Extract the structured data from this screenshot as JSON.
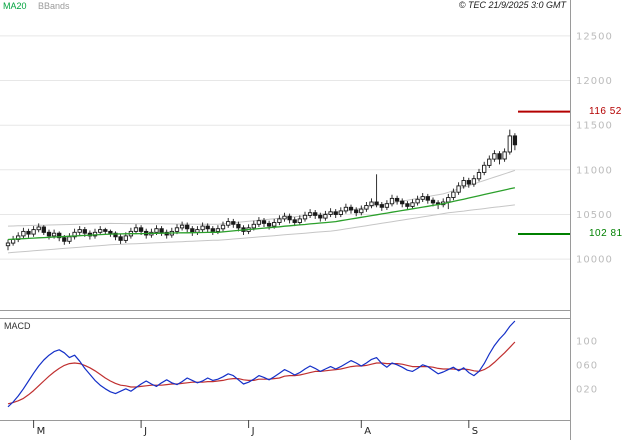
{
  "header": {
    "ma20_label": "MA20",
    "bbands_label": "BBands",
    "copyright": "© TEC 21/9/2025 3:0 GMT"
  },
  "price_panel": {
    "axis_labels": [
      {
        "text": "12500",
        "value": 12500
      },
      {
        "text": "12000",
        "value": 12000
      },
      {
        "text": "11500",
        "value": 11500
      },
      {
        "text": "11000",
        "value": 11000
      },
      {
        "text": "10500",
        "value": 10500
      },
      {
        "text": "10000",
        "value": 10000
      }
    ],
    "levels": [
      {
        "name": "resistance",
        "text": "116 52",
        "value": 11652,
        "color": "#b40000"
      },
      {
        "name": "support",
        "text": "102 81",
        "value": 10281,
        "color": "#008000"
      }
    ]
  },
  "macd_panel": {
    "label": "MACD",
    "axis_labels": [
      {
        "text": "100",
        "value": 1.0
      },
      {
        "text": "060",
        "value": 0.6
      },
      {
        "text": "020",
        "value": 0.2
      }
    ]
  },
  "x_axis": {
    "months": [
      {
        "label": "M",
        "index": 5
      },
      {
        "label": "J",
        "index": 26
      },
      {
        "label": "J",
        "index": 47
      },
      {
        "label": "A",
        "index": 69
      },
      {
        "label": "S",
        "index": 90
      }
    ]
  },
  "colors": {
    "ma20": "#2ca02c",
    "bbands": "#c6c6c6",
    "candle": "#1a1a1a",
    "up_candle": "#ffffff",
    "macd_line": "#1430c8",
    "signal_line": "#c03030",
    "grid": "#e7e7e7",
    "axis_text": "#bcbcbc",
    "border": "#9a9a9a"
  },
  "chart_data": {
    "type": "candlestick",
    "title": "",
    "description": "Daily price candles with MA20 and Bollinger Bands (upper panel) and MACD with signal line (lower panel), May to September 2025",
    "categories_note": "100 daily sessions: May(21) June(21) July(23) August(21) September(14)",
    "price_ylim": [
      9430,
      12700
    ],
    "macd_ylim": [
      -0.32,
      1.38
    ],
    "legend": [
      "MA20",
      "BBands"
    ],
    "candles": [
      [
        10150,
        10220,
        10100,
        10180
      ],
      [
        10180,
        10260,
        10150,
        10220
      ],
      [
        10220,
        10300,
        10190,
        10260
      ],
      [
        10260,
        10350,
        10230,
        10310
      ],
      [
        10310,
        10340,
        10240,
        10280
      ],
      [
        10280,
        10370,
        10250,
        10330
      ],
      [
        10330,
        10400,
        10300,
        10360
      ],
      [
        10360,
        10380,
        10270,
        10300
      ],
      [
        10300,
        10330,
        10220,
        10260
      ],
      [
        10260,
        10330,
        10230,
        10290
      ],
      [
        10290,
        10310,
        10200,
        10240
      ],
      [
        10240,
        10270,
        10160,
        10200
      ],
      [
        10200,
        10290,
        10170,
        10250
      ],
      [
        10250,
        10340,
        10220,
        10300
      ],
      [
        10300,
        10370,
        10270,
        10330
      ],
      [
        10330,
        10360,
        10250,
        10290
      ],
      [
        10290,
        10320,
        10220,
        10260
      ],
      [
        10260,
        10340,
        10230,
        10300
      ],
      [
        10300,
        10370,
        10270,
        10330
      ],
      [
        10330,
        10350,
        10270,
        10310
      ],
      [
        10310,
        10330,
        10250,
        10290
      ],
      [
        10290,
        10310,
        10210,
        10250
      ],
      [
        10250,
        10280,
        10170,
        10210
      ],
      [
        10210,
        10300,
        10180,
        10260
      ],
      [
        10260,
        10350,
        10230,
        10310
      ],
      [
        10310,
        10390,
        10280,
        10350
      ],
      [
        10350,
        10380,
        10270,
        10310
      ],
      [
        10310,
        10340,
        10230,
        10270
      ],
      [
        10270,
        10340,
        10240,
        10300
      ],
      [
        10300,
        10380,
        10270,
        10340
      ],
      [
        10340,
        10370,
        10260,
        10300
      ],
      [
        10300,
        10330,
        10230,
        10270
      ],
      [
        10270,
        10350,
        10240,
        10310
      ],
      [
        10310,
        10390,
        10280,
        10350
      ],
      [
        10350,
        10420,
        10320,
        10380
      ],
      [
        10380,
        10410,
        10300,
        10340
      ],
      [
        10340,
        10370,
        10260,
        10300
      ],
      [
        10300,
        10370,
        10270,
        10330
      ],
      [
        10330,
        10410,
        10300,
        10370
      ],
      [
        10370,
        10400,
        10300,
        10340
      ],
      [
        10340,
        10370,
        10270,
        10310
      ],
      [
        10310,
        10380,
        10280,
        10340
      ],
      [
        10340,
        10420,
        10310,
        10380
      ],
      [
        10380,
        10460,
        10350,
        10420
      ],
      [
        10420,
        10450,
        10350,
        10390
      ],
      [
        10390,
        10420,
        10310,
        10350
      ],
      [
        10350,
        10380,
        10270,
        10310
      ],
      [
        10310,
        10390,
        10280,
        10350
      ],
      [
        10350,
        10430,
        10320,
        10390
      ],
      [
        10390,
        10470,
        10360,
        10430
      ],
      [
        10430,
        10460,
        10360,
        10400
      ],
      [
        10400,
        10430,
        10330,
        10370
      ],
      [
        10370,
        10450,
        10340,
        10410
      ],
      [
        10410,
        10490,
        10380,
        10450
      ],
      [
        10450,
        10520,
        10420,
        10480
      ],
      [
        10480,
        10510,
        10400,
        10440
      ],
      [
        10440,
        10470,
        10370,
        10410
      ],
      [
        10410,
        10490,
        10380,
        10450
      ],
      [
        10450,
        10530,
        10420,
        10490
      ],
      [
        10490,
        10560,
        10460,
        10520
      ],
      [
        10520,
        10550,
        10450,
        10490
      ],
      [
        10490,
        10520,
        10420,
        10460
      ],
      [
        10460,
        10540,
        10430,
        10500
      ],
      [
        10500,
        10570,
        10470,
        10530
      ],
      [
        10530,
        10560,
        10460,
        10500
      ],
      [
        10500,
        10580,
        10470,
        10540
      ],
      [
        10540,
        10620,
        10510,
        10580
      ],
      [
        10580,
        10610,
        10510,
        10550
      ],
      [
        10550,
        10580,
        10480,
        10520
      ],
      [
        10520,
        10600,
        10490,
        10560
      ],
      [
        10560,
        10640,
        10530,
        10600
      ],
      [
        10600,
        10680,
        10570,
        10640
      ],
      [
        10640,
        10950,
        10580,
        10610
      ],
      [
        10610,
        10640,
        10540,
        10580
      ],
      [
        10580,
        10660,
        10550,
        10620
      ],
      [
        10620,
        10720,
        10590,
        10680
      ],
      [
        10680,
        10710,
        10610,
        10650
      ],
      [
        10650,
        10680,
        10580,
        10620
      ],
      [
        10620,
        10650,
        10550,
        10590
      ],
      [
        10590,
        10670,
        10560,
        10630
      ],
      [
        10630,
        10710,
        10600,
        10670
      ],
      [
        10670,
        10740,
        10640,
        10700
      ],
      [
        10700,
        10730,
        10620,
        10660
      ],
      [
        10660,
        10690,
        10590,
        10630
      ],
      [
        10630,
        10660,
        10560,
        10610
      ],
      [
        10610,
        10680,
        10580,
        10640
      ],
      [
        10640,
        10730,
        10560,
        10690
      ],
      [
        10690,
        10790,
        10660,
        10750
      ],
      [
        10750,
        10860,
        10720,
        10820
      ],
      [
        10820,
        10920,
        10790,
        10880
      ],
      [
        10880,
        10910,
        10800,
        10840
      ],
      [
        10840,
        10940,
        10810,
        10900
      ],
      [
        10900,
        11010,
        10870,
        10970
      ],
      [
        10970,
        11090,
        10940,
        11050
      ],
      [
        11050,
        11160,
        11020,
        11120
      ],
      [
        11120,
        11220,
        11090,
        11180
      ],
      [
        11180,
        11210,
        11060,
        11120
      ],
      [
        11120,
        11240,
        11090,
        11200
      ],
      [
        11200,
        11450,
        11170,
        11380
      ],
      [
        11380,
        11410,
        11220,
        11280
      ]
    ],
    "ma20": [
      10220,
      10223,
      10226,
      10229,
      10232,
      10235,
      10238,
      10241,
      10244,
      10247,
      10250,
      10253,
      10256,
      10259,
      10262,
      10265,
      10268,
      10271,
      10274,
      10277,
      10280,
      10281,
      10282,
      10283,
      10284,
      10285,
      10286,
      10287,
      10288,
      10289,
      10290,
      10291,
      10292,
      10293,
      10294,
      10295,
      10296,
      10297,
      10298,
      10299,
      10300,
      10300,
      10305,
      10310,
      10316,
      10321,
      10326,
      10331,
      10336,
      10342,
      10347,
      10352,
      10357,
      10362,
      10368,
      10373,
      10378,
      10383,
      10388,
      10394,
      10399,
      10404,
      10409,
      10414,
      10420,
      10430,
      10439,
      10449,
      10458,
      10468,
      10477,
      10487,
      10496,
      10506,
      10515,
      10525,
      10534,
      10544,
      10553,
      10563,
      10572,
      10582,
      10591,
      10601,
      10610,
      10620,
      10633,
      10646,
      10659,
      10671,
      10684,
      10697,
      10710,
      10723,
      10736,
      10749,
      10761,
      10774,
      10787,
      10800
    ],
    "bb_upper": [
      10370,
      10371,
      10373,
      10374,
      10376,
      10377,
      10379,
      10380,
      10382,
      10383,
      10385,
      10386,
      10388,
      10389,
      10391,
      10392,
      10394,
      10395,
      10397,
      10398,
      10400,
      10399,
      10399,
      10398,
      10398,
      10397,
      10397,
      10396,
      10396,
      10395,
      10395,
      10394,
      10394,
      10393,
      10393,
      10392,
      10392,
      10391,
      10391,
      10390,
      10390,
      10390,
      10395,
      10400,
      10407,
      10412,
      10418,
      10423,
      10429,
      10435,
      10441,
      10446,
      10452,
      10457,
      10464,
      10469,
      10475,
      10480,
      10486,
      10492,
      10498,
      10503,
      10509,
      10514,
      10520,
      10531,
      10540,
      10551,
      10560,
      10571,
      10580,
      10591,
      10600,
      10611,
      10620,
      10631,
      10640,
      10651,
      10660,
      10671,
      10680,
      10691,
      10700,
      10711,
      10720,
      10730,
      10748,
      10767,
      10786,
      10804,
      10823,
      10842,
      10861,
      10880,
      10899,
      10918,
      10936,
      10955,
      10974,
      10993
    ],
    "bb_lower": [
      10070,
      10075,
      10079,
      10084,
      10088,
      10093,
      10097,
      10102,
      10106,
      10111,
      10115,
      10120,
      10124,
      10129,
      10133,
      10138,
      10142,
      10147,
      10151,
      10156,
      10160,
      10163,
      10165,
      10168,
      10170,
      10173,
      10175,
      10178,
      10180,
      10183,
      10185,
      10188,
      10190,
      10193,
      10195,
      10198,
      10200,
      10203,
      10205,
      10208,
      10210,
      10210,
      10215,
      10220,
      10225,
      10230,
      10234,
      10239,
      10243,
      10249,
      10253,
      10258,
      10262,
      10267,
      10272,
      10277,
      10281,
      10286,
      10290,
      10296,
      10300,
      10305,
      10309,
      10314,
      10320,
      10329,
      10338,
      10347,
      10356,
      10365,
      10374,
      10383,
      10392,
      10401,
      10410,
      10419,
      10428,
      10437,
      10446,
      10455,
      10464,
      10473,
      10482,
      10491,
      10500,
      10510,
      10518,
      10525,
      10532,
      10538,
      10545,
      10552,
      10559,
      10566,
      10573,
      10580,
      10586,
      10593,
      10600,
      10607
    ],
    "macd": [
      -0.1,
      -0.02,
      0.08,
      0.2,
      0.33,
      0.46,
      0.58,
      0.68,
      0.76,
      0.82,
      0.85,
      0.8,
      0.72,
      0.76,
      0.66,
      0.54,
      0.44,
      0.34,
      0.26,
      0.2,
      0.15,
      0.12,
      0.16,
      0.2,
      0.16,
      0.22,
      0.28,
      0.33,
      0.28,
      0.24,
      0.3,
      0.35,
      0.3,
      0.27,
      0.32,
      0.38,
      0.34,
      0.3,
      0.33,
      0.38,
      0.34,
      0.36,
      0.4,
      0.45,
      0.42,
      0.35,
      0.28,
      0.31,
      0.36,
      0.42,
      0.39,
      0.35,
      0.4,
      0.46,
      0.52,
      0.48,
      0.43,
      0.47,
      0.53,
      0.58,
      0.54,
      0.49,
      0.53,
      0.57,
      0.53,
      0.57,
      0.62,
      0.67,
      0.63,
      0.58,
      0.63,
      0.69,
      0.72,
      0.62,
      0.56,
      0.63,
      0.6,
      0.56,
      0.51,
      0.49,
      0.54,
      0.6,
      0.57,
      0.51,
      0.45,
      0.48,
      0.52,
      0.56,
      0.5,
      0.55,
      0.47,
      0.42,
      0.49,
      0.62,
      0.78,
      0.92,
      1.03,
      1.12,
      1.24,
      1.33
    ],
    "signal": [
      -0.05,
      -0.03,
      0.0,
      0.04,
      0.1,
      0.17,
      0.25,
      0.33,
      0.41,
      0.48,
      0.54,
      0.59,
      0.62,
      0.63,
      0.62,
      0.59,
      0.55,
      0.5,
      0.44,
      0.38,
      0.33,
      0.29,
      0.26,
      0.25,
      0.23,
      0.23,
      0.24,
      0.25,
      0.26,
      0.26,
      0.26,
      0.27,
      0.28,
      0.28,
      0.29,
      0.3,
      0.31,
      0.31,
      0.31,
      0.32,
      0.32,
      0.33,
      0.34,
      0.36,
      0.37,
      0.37,
      0.35,
      0.34,
      0.34,
      0.36,
      0.36,
      0.36,
      0.37,
      0.38,
      0.41,
      0.42,
      0.42,
      0.43,
      0.45,
      0.47,
      0.49,
      0.49,
      0.5,
      0.51,
      0.52,
      0.53,
      0.55,
      0.57,
      0.58,
      0.58,
      0.59,
      0.61,
      0.63,
      0.63,
      0.62,
      0.62,
      0.62,
      0.61,
      0.59,
      0.57,
      0.57,
      0.57,
      0.57,
      0.56,
      0.54,
      0.53,
      0.53,
      0.53,
      0.52,
      0.53,
      0.52,
      0.5,
      0.49,
      0.52,
      0.57,
      0.64,
      0.72,
      0.8,
      0.89,
      0.98
    ]
  }
}
